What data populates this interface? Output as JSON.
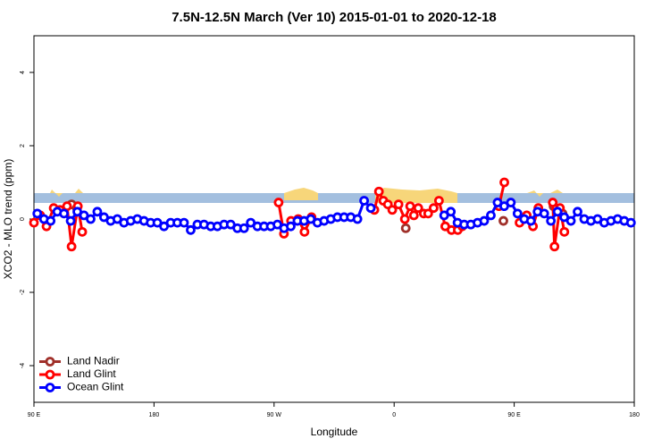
{
  "chart_data": {
    "type": "line",
    "title": "7.5N-12.5N March (Ver 10)   2015-01-01 to 2020-12-18",
    "x_label": "Longitude",
    "y_label": "XCO2 - MLO trend (ppm)",
    "xlim": [
      90,
      540
    ],
    "ylim": [
      -5,
      5
    ],
    "xticks": [
      {
        "value": 90,
        "label": "90 E"
      },
      180,
      {
        "value": 270,
        "label": "90 W"
      },
      {
        "value": 360,
        "label": "0"
      },
      {
        "value": 450,
        "label": "90 E"
      },
      {
        "value": 540,
        "label": "180"
      }
    ],
    "yticks": [
      -4,
      -2,
      0,
      2,
      4
    ],
    "legend": "bottom-left",
    "series": [
      {
        "name": "Land Nadir",
        "color": "#a0302a",
        "x": [
          118.2,
          122.2,
          300,
          368.7,
          420,
          441.9,
          460,
          479.5,
          486.2
        ],
        "values": [
          0.4,
          0.3,
          null,
          -0.25,
          null,
          -0.05,
          null,
          0.35,
          0.15
        ]
      },
      {
        "name": "Land Glint",
        "color": "#ff0000",
        "x": [
          90,
          94.7,
          99.4,
          104.8,
          109.5,
          114.8,
          118.2,
          122.9,
          126.2,
          200,
          273.4,
          277.4,
          282.7,
          288.1,
          292.8,
          298.1,
          320,
          345.2,
          348.6,
          351.9,
          355.3,
          358.6,
          363.3,
          368,
          372,
          374.8,
          378.1,
          382.2,
          385.5,
          389.6,
          393.6,
          398.3,
          403,
          407.7,
          411,
          425,
          438.6,
          442.6,
          450,
          454,
          459.4,
          464.1,
          468.1,
          475,
          478.9,
          480.2,
          484.3,
          487.6
        ],
        "values": [
          -0.1,
          0.1,
          -0.2,
          0.3,
          0.25,
          0.35,
          -0.75,
          0.35,
          -0.35,
          null,
          0.45,
          -0.4,
          -0.05,
          0,
          -0.35,
          0.05,
          null,
          0.25,
          0.75,
          0.5,
          0.4,
          0.25,
          0.4,
          0,
          0.35,
          0.1,
          0.3,
          0.15,
          0.15,
          0.3,
          0.5,
          -0.2,
          -0.3,
          -0.3,
          -0.2,
          null,
          0.35,
          1.0,
          null,
          -0.1,
          0.1,
          -0.2,
          0.3,
          null,
          0.45,
          -0.75,
          0.3,
          -0.35
        ]
      },
      {
        "name": "Ocean Glint",
        "color": "#0000ff",
        "x": [
          92.5,
          97.5,
          102.5,
          107.5,
          112.5,
          117.5,
          122.5,
          127.5,
          132.5,
          137.5,
          142.5,
          147.5,
          152.5,
          157.5,
          162.5,
          167.5,
          172.5,
          177.5,
          182.5,
          187.5,
          192.5,
          197.5,
          202.5,
          207.5,
          212.5,
          217.5,
          222.5,
          227.5,
          232.5,
          237.5,
          242.5,
          247.5,
          252.5,
          257.5,
          262.5,
          267.5,
          272.5,
          277.5,
          282.5,
          287.5,
          292.5,
          297.5,
          302.5,
          307.5,
          312.5,
          317.5,
          322.5,
          327.5,
          332.5,
          337.5,
          342.5,
          347.5,
          397.5,
          402.5,
          407.5,
          412.5,
          417.5,
          422.5,
          427.5,
          432.5,
          437.5,
          442.5,
          447.5,
          452.5,
          457.5,
          462.5,
          467.5,
          472.5,
          477.5,
          482.5,
          487.5,
          492.5,
          497.5,
          502.5,
          507.5,
          512.5,
          517.5,
          522.5,
          527.5,
          532.5,
          537.5
        ],
        "values": [
          0.15,
          0,
          -0.05,
          0.2,
          0.15,
          -0.05,
          0.2,
          0.1,
          0,
          0.2,
          0.05,
          -0.05,
          0,
          -0.1,
          -0.05,
          0,
          -0.05,
          -0.1,
          -0.1,
          -0.2,
          -0.1,
          -0.1,
          -0.1,
          -0.3,
          -0.15,
          -0.15,
          -0.2,
          -0.2,
          -0.15,
          -0.15,
          -0.25,
          -0.25,
          -0.1,
          -0.2,
          -0.2,
          -0.2,
          -0.15,
          -0.25,
          -0.2,
          -0.05,
          -0.05,
          0,
          -0.1,
          -0.05,
          0,
          0.05,
          0.05,
          0.05,
          0,
          0.5,
          0.3,
          null,
          0.1,
          0.2,
          -0.1,
          -0.15,
          -0.15,
          -0.1,
          -0.05,
          0.1,
          0.45,
          0.35,
          0.45,
          0.15,
          0,
          -0.05,
          0.2,
          0.15,
          -0.05,
          0.2,
          0.05,
          -0.05,
          0.2,
          0,
          -0.05,
          0,
          -0.1,
          -0.05,
          0,
          -0.05,
          -0.1
        ]
      }
    ]
  }
}
